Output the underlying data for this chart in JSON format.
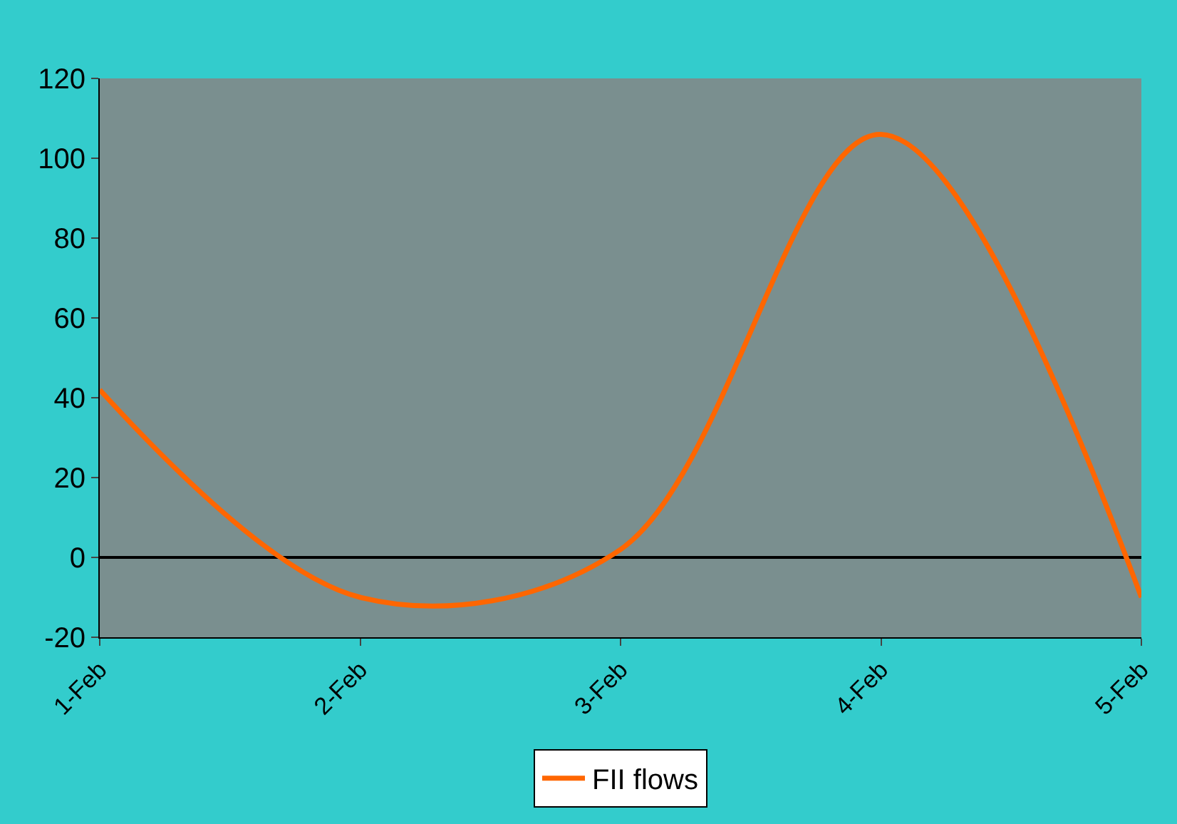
{
  "chart_data": {
    "type": "line",
    "categories": [
      "1-Feb",
      "2-Feb",
      "3-Feb",
      "4-Feb",
      "5-Feb"
    ],
    "series": [
      {
        "name": "FII flows",
        "color": "#ff6600",
        "values": [
          42,
          -10,
          2,
          106,
          -10
        ]
      }
    ],
    "ylim": [
      -20,
      120
    ],
    "yticks": [
      -20,
      0,
      20,
      40,
      60,
      80,
      100,
      120
    ],
    "legend": "bottom",
    "marker": "none",
    "line_style": "solid"
  }
}
